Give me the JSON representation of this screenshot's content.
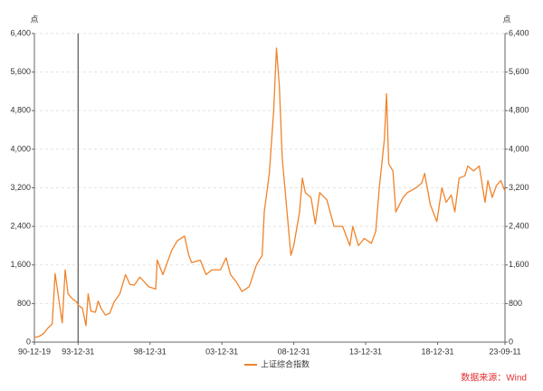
{
  "chart_data": {
    "type": "line",
    "y_label": "点",
    "y2_label": "点",
    "source": "数据来源：Wind",
    "x": [
      1990.96,
      1991.3,
      1991.6,
      1991.9,
      1992.2,
      1992.4,
      1992.6,
      1992.9,
      1993.1,
      1993.3,
      1993.6,
      1993.9,
      1994.0,
      1994.3,
      1994.55,
      1994.7,
      1994.9,
      1995.2,
      1995.4,
      1995.6,
      1995.9,
      1996.2,
      1996.5,
      1996.9,
      1997.3,
      1997.6,
      1997.9,
      1998.3,
      1998.6,
      1998.9,
      1999.4,
      1999.5,
      1999.9,
      2000.5,
      2000.9,
      2001.4,
      2001.7,
      2001.9,
      2002.5,
      2002.9,
      2003.3,
      2003.9,
      2004.3,
      2004.6,
      2005.0,
      2005.4,
      2005.9,
      2006.4,
      2006.8,
      2006.95,
      2007.3,
      2007.6,
      2007.8,
      2008.0,
      2008.2,
      2008.5,
      2008.8,
      2009.0,
      2009.4,
      2009.6,
      2009.8,
      2010.2,
      2010.5,
      2010.8,
      2011.3,
      2011.8,
      2012.4,
      2012.9,
      2013.1,
      2013.5,
      2013.9,
      2014.4,
      2014.7,
      2014.95,
      2015.3,
      2015.45,
      2015.6,
      2015.9,
      2016.1,
      2016.6,
      2016.9,
      2017.5,
      2017.9,
      2018.1,
      2018.5,
      2018.95,
      2019.3,
      2019.6,
      2019.95,
      2020.2,
      2020.5,
      2020.9,
      2021.1,
      2021.5,
      2021.9,
      2022.3,
      2022.5,
      2022.8,
      2023.1,
      2023.4,
      2023.69
    ],
    "series": [
      {
        "name": "上证综合指数",
        "color": "#f0832a",
        "values": [
          100,
          120,
          180,
          290,
          380,
          1420,
          1000,
          400,
          1500,
          1000,
          900,
          830,
          770,
          700,
          340,
          1000,
          640,
          620,
          850,
          700,
          560,
          600,
          830,
          1000,
          1400,
          1200,
          1180,
          1350,
          1250,
          1150,
          1100,
          1700,
          1400,
          1900,
          2100,
          2200,
          1800,
          1650,
          1700,
          1400,
          1500,
          1500,
          1750,
          1400,
          1250,
          1050,
          1150,
          1600,
          1800,
          2700,
          3500,
          4800,
          6100,
          5300,
          3800,
          2800,
          1800,
          2000,
          2700,
          3400,
          3100,
          3000,
          2450,
          3100,
          2950,
          2400,
          2400,
          2000,
          2400,
          2000,
          2150,
          2050,
          2300,
          3200,
          4200,
          5150,
          3700,
          3550,
          2700,
          3000,
          3100,
          3200,
          3300,
          3500,
          2850,
          2500,
          3200,
          2900,
          3050,
          2700,
          3400,
          3450,
          3650,
          3550,
          3650,
          2900,
          3350,
          3000,
          3250,
          3350,
          3130
        ]
      }
    ],
    "xlim": [
      1990.96,
      2023.69
    ],
    "xticks": [
      {
        "value": 1990.96,
        "label": "90-12-19"
      },
      {
        "value": 1994.0,
        "label": "93-12-31"
      },
      {
        "value": 1999.0,
        "label": "98-12-31"
      },
      {
        "value": 2004.0,
        "label": "03-12-31"
      },
      {
        "value": 2009.0,
        "label": "08-12-31"
      },
      {
        "value": 2014.0,
        "label": "13-12-31"
      },
      {
        "value": 2019.0,
        "label": "18-12-31"
      },
      {
        "value": 2023.69,
        "label": "23-09-11"
      }
    ],
    "ylim": [
      0,
      6400
    ],
    "yticks": [
      0,
      800,
      {
        "value": 1600,
        "label": "1,600"
      },
      {
        "value": 2400,
        "label": "2,400"
      },
      {
        "value": 3200,
        "label": "3,200"
      },
      {
        "value": 4000,
        "label": "4,000"
      },
      {
        "value": 4800,
        "label": "4,800"
      },
      {
        "value": 5600,
        "label": "5,600"
      },
      {
        "value": 6400,
        "label": "6,400"
      }
    ],
    "y2lim": [
      0,
      6400
    ],
    "y2ticks": [
      0,
      800,
      {
        "value": 1600,
        "label": "1,600"
      },
      {
        "value": 2400,
        "label": "2,400"
      },
      {
        "value": 3200,
        "label": "3,200"
      },
      {
        "value": 4000,
        "label": "4,000"
      },
      {
        "value": 4800,
        "label": "4,800"
      },
      {
        "value": 5600,
        "label": "5,600"
      },
      {
        "value": 6400,
        "label": "6,400"
      }
    ],
    "vline_x": 1994.0,
    "vline_color": "#555555",
    "grid": true
  }
}
